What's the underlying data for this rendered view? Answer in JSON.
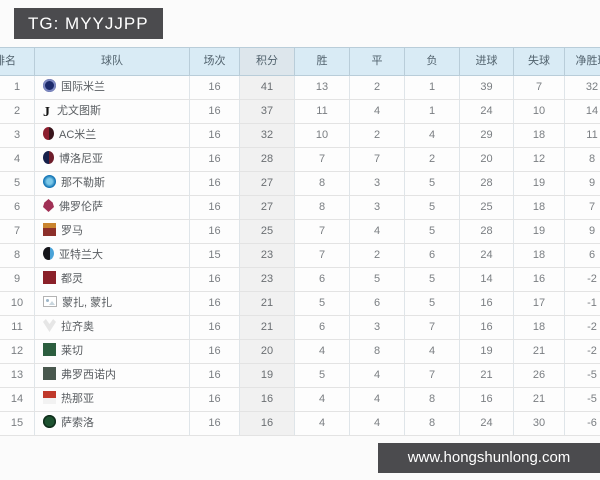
{
  "watermarks": {
    "top": "TG: MYYJJPP",
    "bottom": "www.hongshunlong.com"
  },
  "chart_data": {
    "type": "table",
    "columns": [
      "排名",
      "球队",
      "场次",
      "积分",
      "胜",
      "平",
      "负",
      "进球",
      "失球",
      "净胜球"
    ],
    "rows": [
      {
        "rank": "1",
        "team": "国际米兰",
        "badge": "inter",
        "played": "16",
        "points": "41",
        "win": "13",
        "draw": "2",
        "loss": "1",
        "gf": "39",
        "ga": "7",
        "gd": "32"
      },
      {
        "rank": "2",
        "team": "尤文图斯",
        "badge": "juventus",
        "played": "16",
        "points": "37",
        "win": "11",
        "draw": "4",
        "loss": "1",
        "gf": "24",
        "ga": "10",
        "gd": "14"
      },
      {
        "rank": "3",
        "team": "AC米兰",
        "badge": "ac-milan",
        "played": "16",
        "points": "32",
        "win": "10",
        "draw": "2",
        "loss": "4",
        "gf": "29",
        "ga": "18",
        "gd": "11"
      },
      {
        "rank": "4",
        "team": "博洛尼亚",
        "badge": "bologna",
        "played": "16",
        "points": "28",
        "win": "7",
        "draw": "7",
        "loss": "2",
        "gf": "20",
        "ga": "12",
        "gd": "8"
      },
      {
        "rank": "5",
        "team": "那不勒斯",
        "badge": "napoli",
        "played": "16",
        "points": "27",
        "win": "8",
        "draw": "3",
        "loss": "5",
        "gf": "28",
        "ga": "19",
        "gd": "9"
      },
      {
        "rank": "6",
        "team": "佛罗伦萨",
        "badge": "fiorentina",
        "played": "16",
        "points": "27",
        "win": "8",
        "draw": "3",
        "loss": "5",
        "gf": "25",
        "ga": "18",
        "gd": "7"
      },
      {
        "rank": "7",
        "team": "罗马",
        "badge": "roma",
        "played": "16",
        "points": "25",
        "win": "7",
        "draw": "4",
        "loss": "5",
        "gf": "28",
        "ga": "19",
        "gd": "9"
      },
      {
        "rank": "8",
        "team": "亚特兰大",
        "badge": "atalanta",
        "played": "15",
        "points": "23",
        "win": "7",
        "draw": "2",
        "loss": "6",
        "gf": "24",
        "ga": "18",
        "gd": "6"
      },
      {
        "rank": "9",
        "team": "都灵",
        "badge": "torino",
        "played": "16",
        "points": "23",
        "win": "6",
        "draw": "5",
        "loss": "5",
        "gf": "14",
        "ga": "16",
        "gd": "-2"
      },
      {
        "rank": "10",
        "team": "蒙扎, 蒙扎",
        "badge": "broken-image",
        "played": "16",
        "points": "21",
        "win": "5",
        "draw": "6",
        "loss": "5",
        "gf": "16",
        "ga": "17",
        "gd": "-1"
      },
      {
        "rank": "11",
        "team": "拉齐奥",
        "badge": "lazio",
        "played": "16",
        "points": "21",
        "win": "6",
        "draw": "3",
        "loss": "7",
        "gf": "16",
        "ga": "18",
        "gd": "-2"
      },
      {
        "rank": "12",
        "team": "莱切",
        "badge": "lecce",
        "played": "16",
        "points": "20",
        "win": "4",
        "draw": "8",
        "loss": "4",
        "gf": "19",
        "ga": "21",
        "gd": "-2"
      },
      {
        "rank": "13",
        "team": "弗罗西诺内",
        "badge": "frosinone",
        "played": "16",
        "points": "19",
        "win": "5",
        "draw": "4",
        "loss": "7",
        "gf": "21",
        "ga": "26",
        "gd": "-5"
      },
      {
        "rank": "14",
        "team": "热那亚",
        "badge": "genoa",
        "played": "16",
        "points": "16",
        "win": "4",
        "draw": "4",
        "loss": "8",
        "gf": "16",
        "ga": "21",
        "gd": "-5"
      },
      {
        "rank": "15",
        "team": "萨索洛",
        "badge": "sassuolo",
        "played": "16",
        "points": "16",
        "win": "4",
        "draw": "4",
        "loss": "8",
        "gf": "24",
        "ga": "30",
        "gd": "-6"
      }
    ]
  },
  "colors": {
    "page-bg": "#fbfbfb",
    "header-bg": "#d9ebf5",
    "header-text": "#51626d",
    "points-bg": "#f1f1f1",
    "border-header": "#b9cdd9",
    "border-body": "#dfe5e9",
    "wm-bg": "#4b4b4e",
    "wm-text": "#ffffff"
  }
}
